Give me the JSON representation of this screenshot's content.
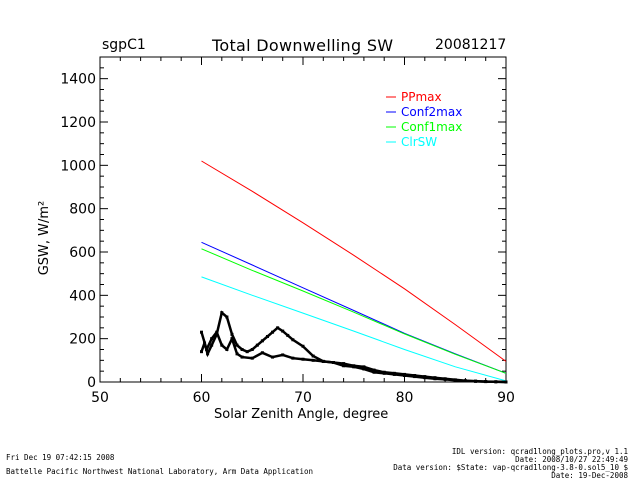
{
  "header": {
    "site": "sgpC1",
    "title": "Total Downwelling SW",
    "date": "20081217"
  },
  "footer": {
    "timestamp": "Fri Dec 19 07:42:15 2008",
    "lab": "Battelle Pacific Northwest National Laboratory, Arm Data Application",
    "idl_version": "IDL version: qcrad1long_plots.pro,v 1.1",
    "idl_date": "Date: 2008/10/27 22:49:49",
    "data_version": "Data version: $State: vap-qcrad1long-3.8-0.sol5_10 $",
    "data_date": "Date: 19-Dec-2008"
  },
  "chart_data": {
    "type": "line",
    "title": "Total Downwelling SW",
    "xlabel": "Solar Zenith Angle, degree",
    "ylabel": "GSW, W/m²",
    "xlim": [
      50,
      90
    ],
    "ylim": [
      0,
      1500
    ],
    "xticks": [
      50,
      60,
      70,
      80,
      90
    ],
    "yticks": [
      0,
      200,
      400,
      600,
      800,
      1000,
      1200,
      1400
    ],
    "grid": false,
    "legend_position": "top-right",
    "series": [
      {
        "name": "PPmax",
        "color": "#ff0000",
        "x": [
          60,
          65,
          70,
          75,
          80,
          85,
          90
        ],
        "y": [
          1020,
          880,
          735,
          585,
          430,
          265,
          95
        ]
      },
      {
        "name": "Conf2max",
        "color": "#0000ff",
        "x": [
          60,
          65,
          70,
          75,
          80,
          85,
          90
        ],
        "y": [
          645,
          540,
          435,
          330,
          225,
          130,
          40
        ]
      },
      {
        "name": "Conf1max",
        "color": "#00ff00",
        "x": [
          60,
          65,
          70,
          75,
          80,
          85,
          90
        ],
        "y": [
          615,
          515,
          420,
          322,
          222,
          128,
          40
        ]
      },
      {
        "name": "ClrSW",
        "color": "#00ffff",
        "x": [
          60,
          65,
          70,
          75,
          80,
          85,
          90
        ],
        "y": [
          485,
          400,
          318,
          235,
          150,
          70,
          5
        ]
      },
      {
        "name": "",
        "color": "#000000",
        "style": "points",
        "x": [
          60,
          60.3,
          60.6,
          61,
          61.5,
          62,
          62.5,
          63,
          63.5,
          64,
          64.5,
          65,
          65.5,
          66,
          66.5,
          67,
          67.5,
          68,
          68.5,
          69,
          70,
          71,
          72,
          73,
          74,
          75,
          76,
          77,
          78,
          79,
          80,
          81,
          82,
          83,
          84,
          85,
          86,
          87,
          88,
          89,
          90
        ],
        "y": [
          140,
          180,
          130,
          170,
          220,
          320,
          300,
          220,
          170,
          150,
          140,
          150,
          170,
          190,
          210,
          230,
          250,
          235,
          215,
          195,
          165,
          120,
          95,
          90,
          85,
          75,
          70,
          55,
          45,
          40,
          35,
          30,
          25,
          20,
          15,
          10,
          6,
          4,
          2,
          1,
          0
        ]
      },
      {
        "name": "",
        "color": "#000000",
        "style": "points",
        "x": [
          60,
          60.5,
          61,
          61.5,
          62,
          62.5,
          63,
          63.5,
          64,
          65,
          66,
          67,
          68,
          69,
          70,
          71,
          72,
          73,
          74,
          75,
          76,
          77,
          78,
          79,
          80,
          81,
          82,
          83,
          84,
          85,
          86,
          87,
          88,
          89,
          90
        ],
        "y": [
          230,
          150,
          200,
          230,
          170,
          150,
          200,
          130,
          115,
          110,
          135,
          115,
          125,
          110,
          105,
          100,
          95,
          90,
          75,
          70,
          60,
          45,
          40,
          35,
          30,
          25,
          20,
          15,
          12,
          8,
          5,
          3,
          2,
          1,
          0
        ]
      }
    ]
  }
}
